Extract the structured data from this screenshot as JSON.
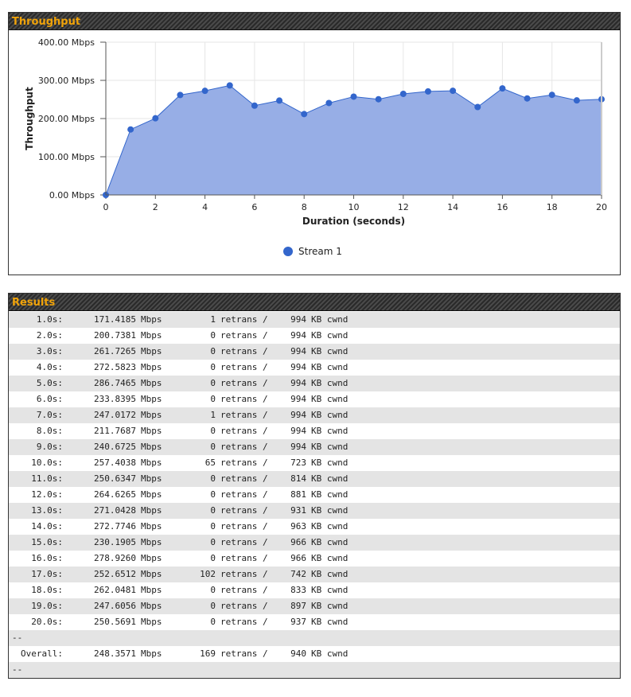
{
  "throughput_panel": {
    "title": "Throughput"
  },
  "results_panel": {
    "title": "Results"
  },
  "chart_data": {
    "type": "area",
    "title": "",
    "xlabel": "Duration (seconds)",
    "ylabel": "Throughput",
    "xlim": [
      0,
      20
    ],
    "ylim": [
      0,
      400
    ],
    "x_ticks": [
      "0",
      "2",
      "4",
      "6",
      "8",
      "10",
      "12",
      "14",
      "16",
      "18",
      "20"
    ],
    "y_ticks": [
      "0.00 Mbps",
      "100.00 Mbps",
      "200.00 Mbps",
      "300.00 Mbps",
      "400.00 Mbps"
    ],
    "grid": true,
    "legend_position": "bottom",
    "series": [
      {
        "name": "Stream 1",
        "color": "#3366cc",
        "fill": "#97aee6",
        "x": [
          0,
          1,
          2,
          3,
          4,
          5,
          6,
          7,
          8,
          9,
          10,
          11,
          12,
          13,
          14,
          15,
          16,
          17,
          18,
          19,
          20
        ],
        "values": [
          0,
          171.4185,
          200.7381,
          261.7265,
          272.5823,
          286.7465,
          233.8395,
          247.0172,
          211.7687,
          240.6725,
          257.4038,
          250.6347,
          264.6265,
          271.0428,
          272.7746,
          230.1905,
          278.926,
          252.6512,
          262.0481,
          247.6056,
          250.5691
        ]
      }
    ]
  },
  "results": {
    "rows": [
      {
        "time": "1.0s:",
        "rate": "171.4185",
        "unit": "Mbps",
        "retrans": "1",
        "retrans_label": "retrans /",
        "cwnd": "994",
        "cwnd_label": "KB cwnd"
      },
      {
        "time": "2.0s:",
        "rate": "200.7381",
        "unit": "Mbps",
        "retrans": "0",
        "retrans_label": "retrans /",
        "cwnd": "994",
        "cwnd_label": "KB cwnd"
      },
      {
        "time": "3.0s:",
        "rate": "261.7265",
        "unit": "Mbps",
        "retrans": "0",
        "retrans_label": "retrans /",
        "cwnd": "994",
        "cwnd_label": "KB cwnd"
      },
      {
        "time": "4.0s:",
        "rate": "272.5823",
        "unit": "Mbps",
        "retrans": "0",
        "retrans_label": "retrans /",
        "cwnd": "994",
        "cwnd_label": "KB cwnd"
      },
      {
        "time": "5.0s:",
        "rate": "286.7465",
        "unit": "Mbps",
        "retrans": "0",
        "retrans_label": "retrans /",
        "cwnd": "994",
        "cwnd_label": "KB cwnd"
      },
      {
        "time": "6.0s:",
        "rate": "233.8395",
        "unit": "Mbps",
        "retrans": "0",
        "retrans_label": "retrans /",
        "cwnd": "994",
        "cwnd_label": "KB cwnd"
      },
      {
        "time": "7.0s:",
        "rate": "247.0172",
        "unit": "Mbps",
        "retrans": "1",
        "retrans_label": "retrans /",
        "cwnd": "994",
        "cwnd_label": "KB cwnd"
      },
      {
        "time": "8.0s:",
        "rate": "211.7687",
        "unit": "Mbps",
        "retrans": "0",
        "retrans_label": "retrans /",
        "cwnd": "994",
        "cwnd_label": "KB cwnd"
      },
      {
        "time": "9.0s:",
        "rate": "240.6725",
        "unit": "Mbps",
        "retrans": "0",
        "retrans_label": "retrans /",
        "cwnd": "994",
        "cwnd_label": "KB cwnd"
      },
      {
        "time": "10.0s:",
        "rate": "257.4038",
        "unit": "Mbps",
        "retrans": "65",
        "retrans_label": "retrans /",
        "cwnd": "723",
        "cwnd_label": "KB cwnd"
      },
      {
        "time": "11.0s:",
        "rate": "250.6347",
        "unit": "Mbps",
        "retrans": "0",
        "retrans_label": "retrans /",
        "cwnd": "814",
        "cwnd_label": "KB cwnd"
      },
      {
        "time": "12.0s:",
        "rate": "264.6265",
        "unit": "Mbps",
        "retrans": "0",
        "retrans_label": "retrans /",
        "cwnd": "881",
        "cwnd_label": "KB cwnd"
      },
      {
        "time": "13.0s:",
        "rate": "271.0428",
        "unit": "Mbps",
        "retrans": "0",
        "retrans_label": "retrans /",
        "cwnd": "931",
        "cwnd_label": "KB cwnd"
      },
      {
        "time": "14.0s:",
        "rate": "272.7746",
        "unit": "Mbps",
        "retrans": "0",
        "retrans_label": "retrans /",
        "cwnd": "963",
        "cwnd_label": "KB cwnd"
      },
      {
        "time": "15.0s:",
        "rate": "230.1905",
        "unit": "Mbps",
        "retrans": "0",
        "retrans_label": "retrans /",
        "cwnd": "966",
        "cwnd_label": "KB cwnd"
      },
      {
        "time": "16.0s:",
        "rate": "278.9260",
        "unit": "Mbps",
        "retrans": "0",
        "retrans_label": "retrans /",
        "cwnd": "966",
        "cwnd_label": "KB cwnd"
      },
      {
        "time": "17.0s:",
        "rate": "252.6512",
        "unit": "Mbps",
        "retrans": "102",
        "retrans_label": "retrans /",
        "cwnd": "742",
        "cwnd_label": "KB cwnd"
      },
      {
        "time": "18.0s:",
        "rate": "262.0481",
        "unit": "Mbps",
        "retrans": "0",
        "retrans_label": "retrans /",
        "cwnd": "833",
        "cwnd_label": "KB cwnd"
      },
      {
        "time": "19.0s:",
        "rate": "247.6056",
        "unit": "Mbps",
        "retrans": "0",
        "retrans_label": "retrans /",
        "cwnd": "897",
        "cwnd_label": "KB cwnd"
      },
      {
        "time": "20.0s:",
        "rate": "250.5691",
        "unit": "Mbps",
        "retrans": "0",
        "retrans_label": "retrans /",
        "cwnd": "937",
        "cwnd_label": "KB cwnd"
      }
    ],
    "separator": "--",
    "overall": {
      "time": "Overall:",
      "rate": "248.3571",
      "unit": "Mbps",
      "retrans": "169",
      "retrans_label": "retrans /",
      "cwnd": "940",
      "cwnd_label": "KB cwnd"
    },
    "trailer": "--"
  }
}
